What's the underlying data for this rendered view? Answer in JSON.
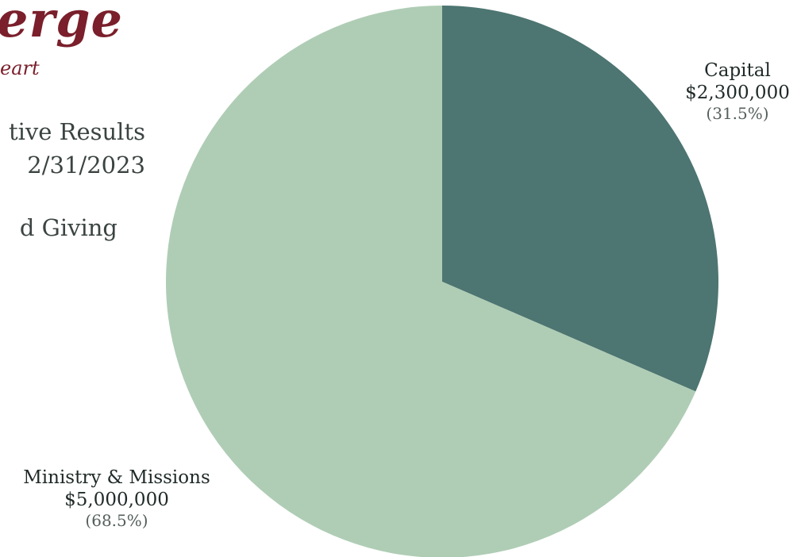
{
  "logo": {
    "word": "erge",
    "tagline": "eart"
  },
  "heading": {
    "line1": "tive Results",
    "line2": "2/31/2023",
    "line3": "d Giving"
  },
  "chart_data": {
    "type": "pie",
    "title": "",
    "slices": [
      {
        "name": "Capital",
        "value": 2300000,
        "value_label": "$2,300,000",
        "percent_label": "(31.5%)",
        "color": "#4d7571"
      },
      {
        "name": "Ministry & Missions",
        "value": 5000000,
        "value_label": "$5,000,000",
        "percent_label": "(68.5%)",
        "color": "#afcdb5"
      }
    ],
    "start_angle": "12 o'clock",
    "direction": "clockwise",
    "legend": "none"
  }
}
